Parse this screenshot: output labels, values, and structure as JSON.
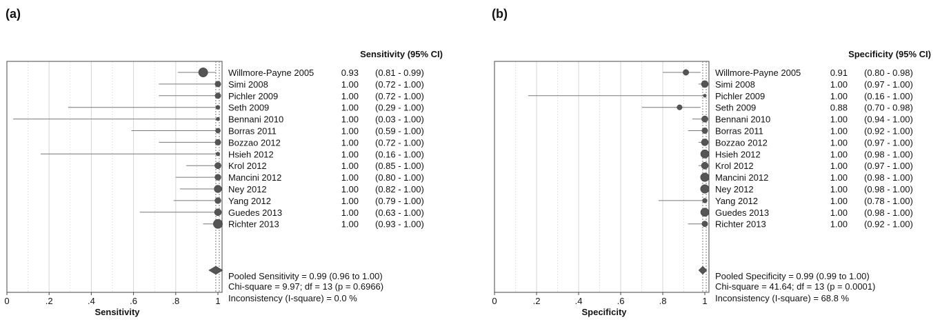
{
  "chart_data": [
    {
      "type": "forest",
      "panel_label": "(a)",
      "xlabel": "Sensitivity",
      "header": "Sensitivity (95% CI)",
      "xlim": [
        0,
        1
      ],
      "xticks": [
        0,
        0.2,
        0.4,
        0.6,
        0.8,
        1
      ],
      "xtick_labels": [
        "0",
        ".2",
        ".4",
        ".6",
        ".8",
        "1"
      ],
      "studies": [
        {
          "name": "Willmore-Payne 2005",
          "est": 0.93,
          "lo": 0.81,
          "hi": 0.99,
          "est_label": "0.93",
          "ci_label": "(0.81 - 0.99)",
          "weight": 1.6
        },
        {
          "name": "Simi 2008",
          "est": 1.0,
          "lo": 0.72,
          "hi": 1.0,
          "est_label": "1.00",
          "ci_label": "(0.72 - 1.00)",
          "weight": 1.0
        },
        {
          "name": "Pichler 2009",
          "est": 1.0,
          "lo": 0.72,
          "hi": 1.0,
          "est_label": "1.00",
          "ci_label": "(0.72 - 1.00)",
          "weight": 1.0
        },
        {
          "name": "Seth 2009",
          "est": 1.0,
          "lo": 0.29,
          "hi": 1.0,
          "est_label": "1.00",
          "ci_label": "(0.29 - 1.00)",
          "weight": 0.7
        },
        {
          "name": "Bennani 2010",
          "est": 1.0,
          "lo": 0.03,
          "hi": 1.0,
          "est_label": "1.00",
          "ci_label": "(0.03 - 1.00)",
          "weight": 0.6
        },
        {
          "name": "Borras 2011",
          "est": 1.0,
          "lo": 0.59,
          "hi": 1.0,
          "est_label": "1.00",
          "ci_label": "(0.59 - 1.00)",
          "weight": 0.85
        },
        {
          "name": "Bozzao 2012",
          "est": 1.0,
          "lo": 0.72,
          "hi": 1.0,
          "est_label": "1.00",
          "ci_label": "(0.72 - 1.00)",
          "weight": 1.0
        },
        {
          "name": "Hsieh 2012",
          "est": 1.0,
          "lo": 0.16,
          "hi": 1.0,
          "est_label": "1.00",
          "ci_label": "(0.16 - 1.00)",
          "weight": 0.65
        },
        {
          "name": "Krol 2012",
          "est": 1.0,
          "lo": 0.85,
          "hi": 1.0,
          "est_label": "1.00",
          "ci_label": "(0.85 - 1.00)",
          "weight": 1.1
        },
        {
          "name": "Mancini 2012",
          "est": 1.0,
          "lo": 0.8,
          "hi": 1.0,
          "est_label": "1.00",
          "ci_label": "(0.80 - 1.00)",
          "weight": 1.05
        },
        {
          "name": "Ney 2012",
          "est": 1.0,
          "lo": 0.82,
          "hi": 1.0,
          "est_label": "1.00",
          "ci_label": "(0.82 - 1.00)",
          "weight": 1.3
        },
        {
          "name": "Yang 2012",
          "est": 1.0,
          "lo": 0.79,
          "hi": 1.0,
          "est_label": "1.00",
          "ci_label": "(0.79 - 1.00)",
          "weight": 1.05
        },
        {
          "name": "Guedes 2013",
          "est": 1.0,
          "lo": 0.63,
          "hi": 1.0,
          "est_label": "1.00",
          "ci_label": "(0.63 - 1.00)",
          "weight": 1.2
        },
        {
          "name": "Richter 2013",
          "est": 1.0,
          "lo": 0.93,
          "hi": 1.0,
          "est_label": "1.00",
          "ci_label": "(0.93 - 1.00)",
          "weight": 1.6
        }
      ],
      "pooled": {
        "est": 0.99,
        "lo": 0.96,
        "hi": 1.0
      },
      "summary_lines": [
        "Pooled Sensitivity = 0.99 (0.96 to 1.00)",
        "Chi-square = 9.97; df =  13 (p = 0.6966)",
        "Inconsistency (I-square) = 0.0 %"
      ]
    },
    {
      "type": "forest",
      "panel_label": "(b)",
      "xlabel": "Specificity",
      "header": "Specificity (95% CI)",
      "xlim": [
        0,
        1
      ],
      "xticks": [
        0,
        0.2,
        0.4,
        0.6,
        0.8,
        1
      ],
      "xtick_labels": [
        "0",
        ".2",
        ".4",
        ".6",
        ".8",
        "1"
      ],
      "studies": [
        {
          "name": "Willmore-Payne 2005",
          "est": 0.91,
          "lo": 0.8,
          "hi": 0.98,
          "est_label": "0.91",
          "ci_label": "(0.80 - 0.98)",
          "weight": 1.0
        },
        {
          "name": "Simi 2008",
          "est": 1.0,
          "lo": 0.97,
          "hi": 1.0,
          "est_label": "1.00",
          "ci_label": "(0.97 - 1.00)",
          "weight": 1.2
        },
        {
          "name": "Pichler 2009",
          "est": 1.0,
          "lo": 0.16,
          "hi": 1.0,
          "est_label": "1.00",
          "ci_label": "(0.16 - 1.00)",
          "weight": 0.55
        },
        {
          "name": "Seth 2009",
          "est": 0.88,
          "lo": 0.7,
          "hi": 0.98,
          "est_label": "0.88",
          "ci_label": "(0.70 - 0.98)",
          "weight": 0.9
        },
        {
          "name": "Bennani 2010",
          "est": 1.0,
          "lo": 0.94,
          "hi": 1.0,
          "est_label": "1.00",
          "ci_label": "(0.94 - 1.00)",
          "weight": 1.1
        },
        {
          "name": "Borras 2011",
          "est": 1.0,
          "lo": 0.92,
          "hi": 1.0,
          "est_label": "1.00",
          "ci_label": "(0.92 - 1.00)",
          "weight": 1.0
        },
        {
          "name": "Bozzao 2012",
          "est": 1.0,
          "lo": 0.97,
          "hi": 1.0,
          "est_label": "1.00",
          "ci_label": "(0.97 - 1.00)",
          "weight": 1.2
        },
        {
          "name": "Hsieh 2012",
          "est": 1.0,
          "lo": 0.98,
          "hi": 1.0,
          "est_label": "1.00",
          "ci_label": "(0.98 - 1.00)",
          "weight": 1.45
        },
        {
          "name": "Krol 2012",
          "est": 1.0,
          "lo": 0.97,
          "hi": 1.0,
          "est_label": "1.00",
          "ci_label": "(0.97 - 1.00)",
          "weight": 1.2
        },
        {
          "name": "Mancini 2012",
          "est": 1.0,
          "lo": 0.98,
          "hi": 1.0,
          "est_label": "1.00",
          "ci_label": "(0.98 - 1.00)",
          "weight": 1.5
        },
        {
          "name": "Ney 2012",
          "est": 1.0,
          "lo": 0.98,
          "hi": 1.0,
          "est_label": "1.00",
          "ci_label": "(0.98 - 1.00)",
          "weight": 1.5
        },
        {
          "name": "Yang 2012",
          "est": 1.0,
          "lo": 0.78,
          "hi": 1.0,
          "est_label": "1.00",
          "ci_label": "(0.78 - 1.00)",
          "weight": 0.8
        },
        {
          "name": "Guedes 2013",
          "est": 1.0,
          "lo": 0.98,
          "hi": 1.0,
          "est_label": "1.00",
          "ci_label": "(0.98 - 1.00)",
          "weight": 1.45
        },
        {
          "name": "Richter 2013",
          "est": 1.0,
          "lo": 0.92,
          "hi": 1.0,
          "est_label": "1.00",
          "ci_label": "(0.92 - 1.00)",
          "weight": 1.0
        }
      ],
      "pooled": {
        "est": 0.99,
        "lo": 0.99,
        "hi": 1.0
      },
      "summary_lines": [
        "Pooled Specificity = 0.99 (0.99 to 1.00)",
        "Chi-square = 41.64; df =  13 (p = 0.0001)",
        "Inconsistency (I-square) = 68.8 %"
      ]
    }
  ]
}
